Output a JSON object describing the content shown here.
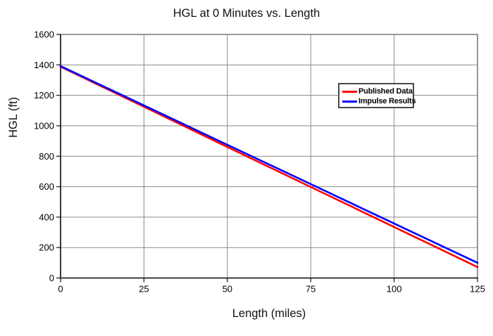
{
  "page": {
    "background": "#ffffff"
  },
  "chart_data": {
    "type": "line",
    "title": "HGL at 0 Minutes vs. Length",
    "xlabel": "Length (miles)",
    "ylabel": "HGL (ft)",
    "xlim": [
      0,
      125
    ],
    "ylim": [
      0,
      1600
    ],
    "x_ticks": [
      0,
      25,
      50,
      75,
      100,
      125
    ],
    "y_ticks": [
      0,
      200,
      400,
      600,
      800,
      1000,
      1200,
      1400,
      1600
    ],
    "grid": true,
    "legend_position": "inside-upper-right",
    "series": [
      {
        "name": "Published Data",
        "color": "#ff0000",
        "x": [
          0,
          25,
          50,
          75,
          100,
          125
        ],
        "y": [
          1388,
          1125,
          861,
          598,
          335,
          72
        ]
      },
      {
        "name": "Impulse Results",
        "color": "#0000ff",
        "x": [
          0,
          25,
          50,
          75,
          100,
          125
        ],
        "y": [
          1392,
          1134,
          875,
          617,
          358,
          100
        ]
      }
    ],
    "appearance": {
      "plot_bg": "#ffffff",
      "grid_color": "#8a8a8a",
      "frame_color": "#8a8a8a",
      "axis_color": "#222222",
      "tick_color": "#222222",
      "text_color": "#000000",
      "legend_border_color": "#4a4a4a"
    }
  }
}
